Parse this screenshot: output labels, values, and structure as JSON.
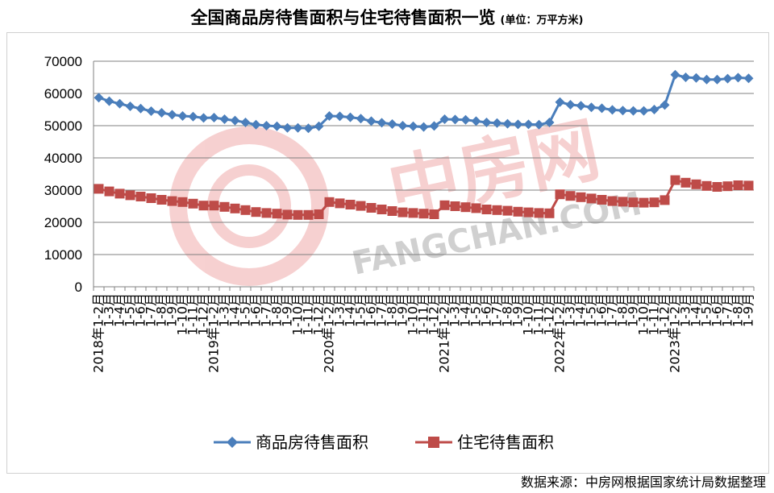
{
  "header": {
    "title": "全国商品房待售面积与住宅待售面积一览",
    "unit": "(单位：万平方米)"
  },
  "footer": {
    "source": "数据来源：中房网根据国家统计局数据整理"
  },
  "watermark": {
    "cn": "中房网",
    "en": "FANGCHAN.COM"
  },
  "colors": {
    "series1": "#4a7ebb",
    "series2": "#be4b48",
    "grid": "#808080",
    "watermark": "#e87a7a"
  },
  "chart_data": {
    "type": "line",
    "ylim": [
      0,
      70000
    ],
    "yticks": [
      0,
      10000,
      20000,
      30000,
      40000,
      50000,
      60000,
      70000
    ],
    "grid": true,
    "legend_position": "bottom",
    "x": [
      "2018年1-2月",
      "1-3月",
      "1-4月",
      "1-5月",
      "1-6月",
      "1-7月",
      "1-8月",
      "1-9月",
      "1-10月",
      "1-11月",
      "1-12月",
      "2019年1-2月",
      "1-3月",
      "1-4月",
      "1-5月",
      "1-6月",
      "1-7月",
      "1-8月",
      "1-9月",
      "1-10月",
      "1-11月",
      "1-12月",
      "2020年1-2月",
      "1-3月",
      "1-4月",
      "1-5月",
      "1-6月",
      "1-7月",
      "1-8月",
      "1-9月",
      "1-10月",
      "1-11月",
      "1-12月",
      "2021年1-2月",
      "1-3月",
      "1-4月",
      "1-5月",
      "1-6月",
      "1-7月",
      "1-8月",
      "1-9月",
      "1-10月",
      "1-11月",
      "1-12月",
      "2022年1-2月",
      "1-3月",
      "1-4月",
      "1-5月",
      "1-6月",
      "1-7月",
      "1-8月",
      "1-9月",
      "1-10月",
      "1-11月",
      "1-12月",
      "2023年1-2月",
      "1-3月",
      "1-4月",
      "1-5月",
      "1-6月",
      "1-7月",
      "1-8月",
      "1-9月"
    ],
    "series": [
      {
        "name": "商品房待售面积",
        "values": [
          58700,
          57600,
          56800,
          56000,
          55300,
          54500,
          54000,
          53400,
          53000,
          52800,
          52400,
          52500,
          52000,
          51600,
          51000,
          50300,
          50000,
          49800,
          49300,
          49300,
          49200,
          49800,
          53000,
          52900,
          52600,
          52200,
          51400,
          50900,
          50500,
          50000,
          49800,
          49600,
          49900,
          52000,
          51900,
          51800,
          51400,
          51000,
          50800,
          50600,
          50400,
          50400,
          50300,
          51000,
          57300,
          56500,
          56200,
          55700,
          55400,
          54900,
          54700,
          54600,
          54600,
          55000,
          56400,
          65800,
          65000,
          64800,
          64300,
          64300,
          64600,
          64900,
          64700
        ]
      },
      {
        "name": "住宅待售面积",
        "values": [
          30400,
          29600,
          28900,
          28400,
          28000,
          27500,
          27000,
          26600,
          26300,
          25800,
          25200,
          25200,
          24800,
          24300,
          23800,
          23200,
          22900,
          22700,
          22400,
          22300,
          22300,
          22500,
          26300,
          25900,
          25500,
          25100,
          24500,
          24000,
          23500,
          23100,
          22900,
          22700,
          22500,
          25300,
          25000,
          24700,
          24400,
          24000,
          23800,
          23600,
          23300,
          23100,
          22900,
          22800,
          28700,
          28200,
          27800,
          27400,
          27000,
          26600,
          26400,
          26200,
          26100,
          26200,
          26900,
          33100,
          32300,
          31800,
          31300,
          31000,
          31200,
          31500,
          31400
        ]
      }
    ]
  }
}
